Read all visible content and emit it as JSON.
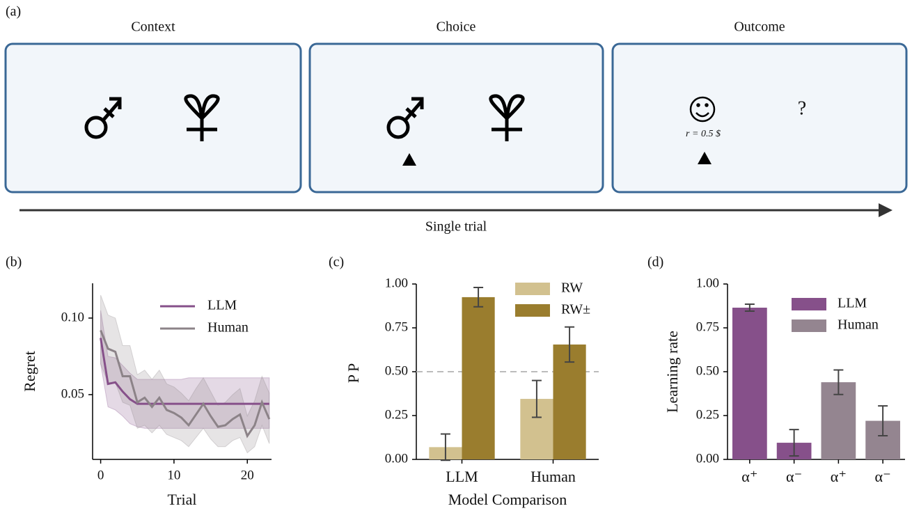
{
  "diagram": {
    "panel_label": "(a)",
    "stages": [
      "Context",
      "Choice",
      "Outcome"
    ],
    "reward": "r = 0.5 $",
    "unknown": "?",
    "axis_label": "Single trial"
  },
  "chart_data": [
    {
      "type": "line",
      "panel_label": "(b)",
      "xlabel": "Trial",
      "ylabel": "Regret",
      "legend": "upper right",
      "x": [
        0,
        1,
        2,
        3,
        4,
        5,
        6,
        7,
        8,
        9,
        10,
        11,
        12,
        13,
        14,
        15,
        16,
        17,
        18,
        19,
        20,
        21,
        22,
        23
      ],
      "xlim": [
        -1.1,
        23.3
      ],
      "xticks": [
        0,
        10,
        20
      ],
      "ylim": [
        0.0077,
        0.1227
      ],
      "yticks": [
        0.05,
        {
          "value": 0.1,
          "label": "0.10"
        }
      ],
      "series": [
        {
          "name": "LLM",
          "color": "#86508a",
          "values": [
            0.087,
            0.057,
            0.058,
            0.052,
            0.047,
            0.044,
            0.044,
            0.044,
            0.044,
            0.044,
            0.044,
            0.044,
            0.044,
            0.044,
            0.044,
            0.044,
            0.044,
            0.044,
            0.044,
            0.044,
            0.044,
            0.044,
            0.044,
            0.044
          ],
          "lower": [
            0.07,
            0.042,
            0.04,
            0.036,
            0.031,
            0.029,
            0.028,
            0.028,
            0.028,
            0.028,
            0.028,
            0.028,
            0.028,
            0.028,
            0.028,
            0.028,
            0.028,
            0.028,
            0.028,
            0.028,
            0.028,
            0.028,
            0.028,
            0.028
          ],
          "upper": [
            0.105,
            0.075,
            0.074,
            0.069,
            0.064,
            0.06,
            0.06,
            0.06,
            0.06,
            0.06,
            0.06,
            0.06,
            0.061,
            0.061,
            0.061,
            0.061,
            0.061,
            0.061,
            0.061,
            0.061,
            0.061,
            0.061,
            0.061,
            0.061
          ]
        },
        {
          "name": "Human",
          "color": "#8c8388",
          "values": [
            0.092,
            0.08,
            0.078,
            0.062,
            0.062,
            0.045,
            0.048,
            0.042,
            0.048,
            0.04,
            0.038,
            0.035,
            0.03,
            0.037,
            0.044,
            0.036,
            0.029,
            0.03,
            0.034,
            0.037,
            0.023,
            0.03,
            0.045,
            0.034
          ],
          "lower": [
            0.07,
            0.058,
            0.058,
            0.045,
            0.043,
            0.028,
            0.03,
            0.025,
            0.03,
            0.024,
            0.022,
            0.02,
            0.016,
            0.022,
            0.028,
            0.021,
            0.016,
            0.016,
            0.02,
            0.022,
            0.012,
            0.016,
            0.03,
            0.018
          ],
          "upper": [
            0.115,
            0.102,
            0.1,
            0.082,
            0.082,
            0.063,
            0.066,
            0.06,
            0.066,
            0.057,
            0.055,
            0.051,
            0.046,
            0.054,
            0.061,
            0.052,
            0.043,
            0.045,
            0.05,
            0.054,
            0.036,
            0.046,
            0.062,
            0.051
          ]
        }
      ]
    },
    {
      "type": "bar",
      "panel_label": "(c)",
      "xlabel": "Model Comparison",
      "ylabel": "PP",
      "legend": "upper right",
      "categories": [
        "LLM",
        "Human"
      ],
      "reference_line": 0.5,
      "ylim": [
        0,
        1
      ],
      "yticks": [
        {
          "value": 0,
          "label": "0.00"
        },
        {
          "value": 0.25,
          "label": "0.25"
        },
        {
          "value": 0.5,
          "label": "0.50"
        },
        {
          "value": 0.75,
          "label": "0.75"
        },
        {
          "value": 1,
          "label": "1.00"
        }
      ],
      "series": [
        {
          "name": "RW",
          "color": "#d2c18f",
          "values": [
            0.07,
            0.345
          ],
          "errors": [
            0.075,
            0.105
          ]
        },
        {
          "name": "RW±",
          "color": "#9a7d2e",
          "values": [
            0.925,
            0.655
          ],
          "errors": [
            0.055,
            0.1
          ]
        }
      ]
    },
    {
      "type": "bar",
      "panel_label": "(d)",
      "ylabel": "Learning rate",
      "legend": "upper right",
      "categories": [
        "α⁺",
        "α⁻",
        "α⁺",
        "α⁻"
      ],
      "ylim": [
        0,
        1
      ],
      "yticks": [
        {
          "value": 0,
          "label": "0.00"
        },
        {
          "value": 0.25,
          "label": "0.25"
        },
        {
          "value": 0.5,
          "label": "0.50"
        },
        {
          "value": 0.75,
          "label": "0.75"
        },
        {
          "value": 1,
          "label": "1.00"
        }
      ],
      "series": [
        {
          "name": "LLM",
          "color": "#86508a",
          "values": [
            0.865,
            0.095,
            null,
            null
          ],
          "errors": [
            0.02,
            0.075,
            null,
            null
          ]
        },
        {
          "name": "Human",
          "color": "#948590",
          "values": [
            null,
            null,
            0.44,
            0.22
          ],
          "errors": [
            null,
            null,
            0.07,
            0.085
          ]
        }
      ]
    }
  ]
}
